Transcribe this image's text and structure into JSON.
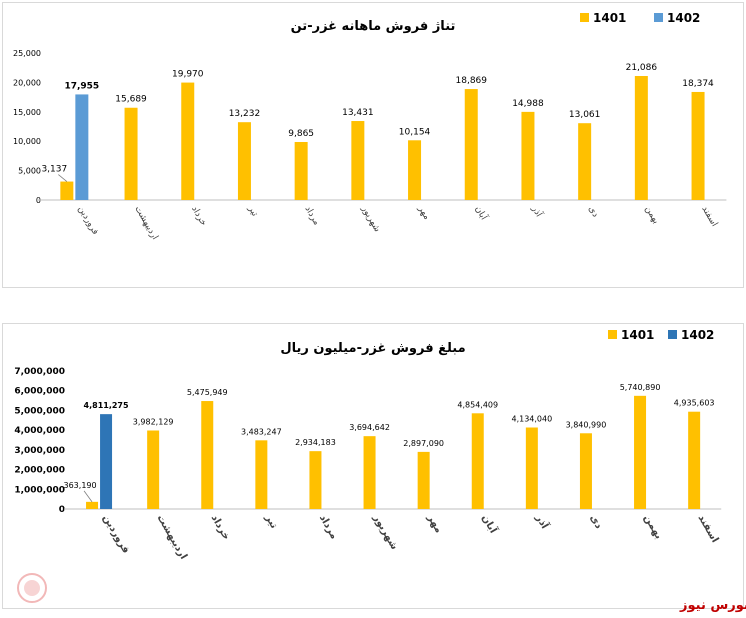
{
  "charts": [
    {
      "type": "bar",
      "title": "تناژ فروش ماهانه غزر-تن",
      "categories": [
        "فروردین",
        "اردیبهشت",
        "خرداد",
        "تیر",
        "مرداد",
        "شهریور",
        "مهر",
        "آبان",
        "آذر",
        "دی",
        "بهمن",
        "اسفند"
      ],
      "series": [
        {
          "name": "1401",
          "color": "#FFC000",
          "values": [
            3137,
            15689,
            19970,
            13232,
            9865,
            13431,
            10154,
            18869,
            14988,
            13061,
            21086,
            18374
          ]
        },
        {
          "name": "1402",
          "color": "#5B9BD5",
          "values": [
            17955,
            null,
            null,
            null,
            null,
            null,
            null,
            null,
            null,
            null,
            null,
            null
          ]
        }
      ],
      "data_labels": {
        "1401": [
          "3,137",
          "15,689",
          "19,970",
          "13,232",
          "9,865",
          "13,431",
          "10,154",
          "18,869",
          "14,988",
          "13,061",
          "21,086",
          "18,374"
        ],
        "1402": [
          "17,955"
        ]
      },
      "yticks": [
        "0",
        "5,000",
        "10,000",
        "15,000",
        "20,000",
        "25,000"
      ],
      "ylim": [
        0,
        25000
      ],
      "grid": false,
      "legend": "top-right"
    },
    {
      "type": "bar",
      "title": "مبلغ فروش غزر-میلیون ریال",
      "categories": [
        "فروردین",
        "اردیبهشت",
        "خرداد",
        "تیر",
        "مرداد",
        "شهریور",
        "مهر",
        "آبان",
        "آذر",
        "دی",
        "بهمن",
        "اسفند"
      ],
      "series": [
        {
          "name": "1401",
          "color": "#FFC000",
          "values": [
            363190,
            3982129,
            5475949,
            3483247,
            2934183,
            3694642,
            2897090,
            4854409,
            4134040,
            3840990,
            5740890,
            4935603
          ]
        },
        {
          "name": "1402",
          "color": "#2E75B6",
          "values": [
            4811275,
            null,
            null,
            null,
            null,
            null,
            null,
            null,
            null,
            null,
            null,
            null
          ]
        }
      ],
      "data_labels": {
        "1401": [
          "363,190",
          "3,982,129",
          "5,475,949",
          "3,483,247",
          "2,934,183",
          "3,694,642",
          "2,897,090",
          "4,854,409",
          "4,134,040",
          "3,840,990",
          "5,740,890",
          "4,935,603"
        ],
        "1402": [
          "4,811,275"
        ]
      },
      "yticks": [
        "0",
        "1,000,000",
        "2,000,000",
        "3,000,000",
        "4,000,000",
        "5,000,000",
        "6,000,000",
        "7,000,000"
      ],
      "ylim": [
        0,
        7000000
      ],
      "grid": false,
      "legend": "top-right"
    }
  ],
  "brand": {
    "text": "بورس نیوز",
    "watermark_text": "بورس نیوز",
    "color": "#c00000"
  }
}
